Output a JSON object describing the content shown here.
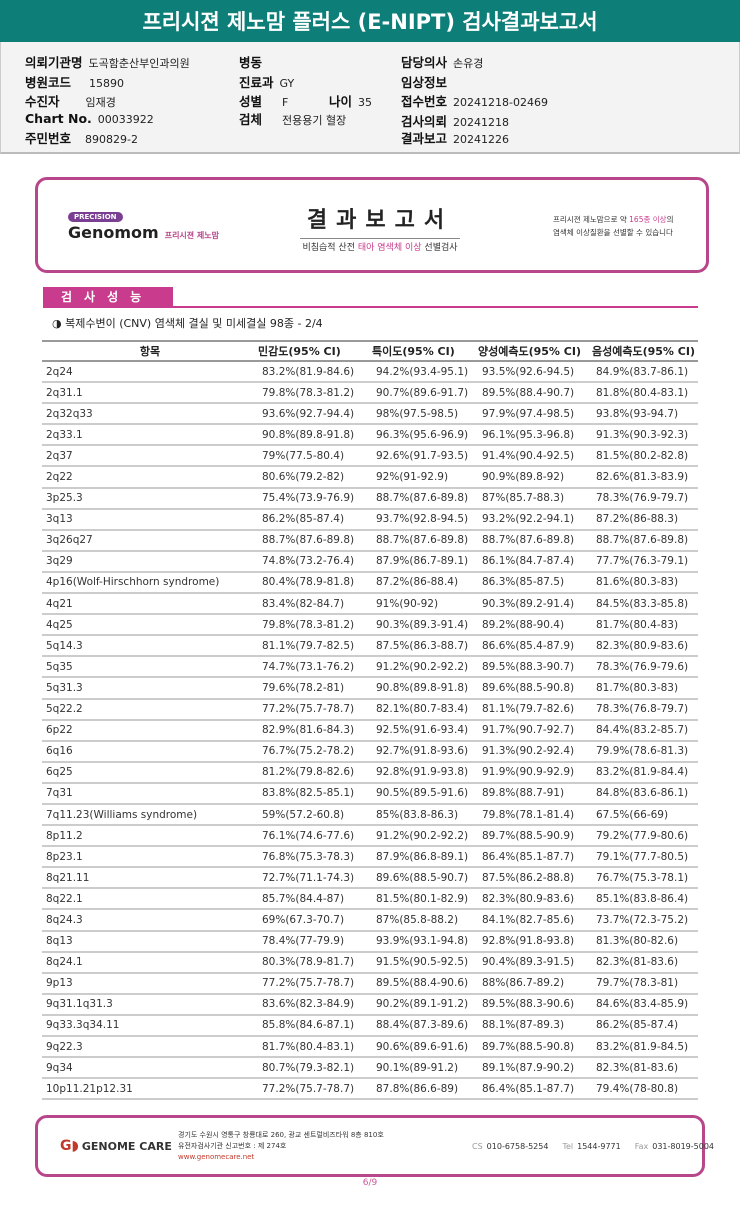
{
  "title": "프리시젼 제노맘 플러스 (E-NIPT) 검사결과보고서",
  "info": {
    "hospital_label": "의뢰기관명",
    "hospital": "도곡함춘산부인과의원",
    "code_label": "병원코드",
    "code": "15890",
    "patient_label": "수진자",
    "patient": "임재경",
    "chart_label": "Chart No.",
    "chart": "00033922",
    "rrn_label": "주민번호",
    "rrn": "890829-2",
    "ward_label": "병동",
    "ward": "",
    "dept_label": "진료과",
    "dept": "GY",
    "sex_label": "성별",
    "sex": "F",
    "age_label": "나이",
    "age": "35",
    "specimen_label": "검체",
    "specimen": "전용용기 혈장",
    "doctor_label": "담당의사",
    "doctor": "손유경",
    "clinical_label": "임상정보",
    "clinical": "",
    "accession_label": "접수번호",
    "accession": "20241218-02469",
    "request_label": "검사의뢰",
    "request": "20241218",
    "report_label": "결과보고",
    "report": "20241226"
  },
  "report_header": {
    "precision": "PRECISION",
    "brand": "Genomom",
    "brand_kr": "프리시젼 제노맘",
    "title": "결과보고서",
    "subtitle_a": "비침습적 산전 ",
    "subtitle_em": "태아 염색체 이상",
    "subtitle_b": " 선별검사",
    "right_a": "프리시젼 제노맘으로 약 ",
    "right_em": "165종 이상",
    "right_b": "의",
    "right_c": "염색체 이상질환을 선별할 수 있습니다"
  },
  "section": {
    "title": "검사성능",
    "subtitle": "◑ 복제수변이 (CNV) 염색체 결실 및 미세결실 98종 - 2/4"
  },
  "table": {
    "headers": [
      "항목",
      "민감도(95% CI)",
      "특이도(95% CI)",
      "양성예측도(95% CI)",
      "음성예측도(95% CI)"
    ],
    "rows": [
      [
        "2q24",
        "83.2%(81.9-84.6)",
        "94.2%(93.4-95.1)",
        "93.5%(92.6-94.5)",
        "84.9%(83.7-86.1)"
      ],
      [
        "2q31.1",
        "79.8%(78.3-81.2)",
        "90.7%(89.6-91.7)",
        "89.5%(88.4-90.7)",
        "81.8%(80.4-83.1)"
      ],
      [
        "2q32q33",
        "93.6%(92.7-94.4)",
        "98%(97.5-98.5)",
        "97.9%(97.4-98.5)",
        "93.8%(93-94.7)"
      ],
      [
        "2q33.1",
        "90.8%(89.8-91.8)",
        "96.3%(95.6-96.9)",
        "96.1%(95.3-96.8)",
        "91.3%(90.3-92.3)"
      ],
      [
        "2q37",
        "79%(77.5-80.4)",
        "92.6%(91.7-93.5)",
        "91.4%(90.4-92.5)",
        "81.5%(80.2-82.8)"
      ],
      [
        "2q22",
        "80.6%(79.2-82)",
        "92%(91-92.9)",
        "90.9%(89.8-92)",
        "82.6%(81.3-83.9)"
      ],
      [
        "3p25.3",
        "75.4%(73.9-76.9)",
        "88.7%(87.6-89.8)",
        "87%(85.7-88.3)",
        "78.3%(76.9-79.7)"
      ],
      [
        "3q13",
        "86.2%(85-87.4)",
        "93.7%(92.8-94.5)",
        "93.2%(92.2-94.1)",
        "87.2%(86-88.3)"
      ],
      [
        "3q26q27",
        "88.7%(87.6-89.8)",
        "88.7%(87.6-89.8)",
        "88.7%(87.6-89.8)",
        "88.7%(87.6-89.8)"
      ],
      [
        "3q29",
        "74.8%(73.2-76.4)",
        "87.9%(86.7-89.1)",
        "86.1%(84.7-87.4)",
        "77.7%(76.3-79.1)"
      ],
      [
        "4p16(Wolf-Hirschhorn syndrome)",
        "80.4%(78.9-81.8)",
        "87.2%(86-88.4)",
        "86.3%(85-87.5)",
        "81.6%(80.3-83)"
      ],
      [
        "4q21",
        "83.4%(82-84.7)",
        "91%(90-92)",
        "90.3%(89.2-91.4)",
        "84.5%(83.3-85.8)"
      ],
      [
        "4q25",
        "79.8%(78.3-81.2)",
        "90.3%(89.3-91.4)",
        "89.2%(88-90.4)",
        "81.7%(80.4-83)"
      ],
      [
        "5q14.3",
        "81.1%(79.7-82.5)",
        "87.5%(86.3-88.7)",
        "86.6%(85.4-87.9)",
        "82.3%(80.9-83.6)"
      ],
      [
        "5q35",
        "74.7%(73.1-76.2)",
        "91.2%(90.2-92.2)",
        "89.5%(88.3-90.7)",
        "78.3%(76.9-79.6)"
      ],
      [
        "5q31.3",
        "79.6%(78.2-81)",
        "90.8%(89.8-91.8)",
        "89.6%(88.5-90.8)",
        "81.7%(80.3-83)"
      ],
      [
        "5q22.2",
        "77.2%(75.7-78.7)",
        "82.1%(80.7-83.4)",
        "81.1%(79.7-82.6)",
        "78.3%(76.8-79.7)"
      ],
      [
        "6p22",
        "82.9%(81.6-84.3)",
        "92.5%(91.6-93.4)",
        "91.7%(90.7-92.7)",
        "84.4%(83.2-85.7)"
      ],
      [
        "6q16",
        "76.7%(75.2-78.2)",
        "92.7%(91.8-93.6)",
        "91.3%(90.2-92.4)",
        "79.9%(78.6-81.3)"
      ],
      [
        "6q25",
        "81.2%(79.8-82.6)",
        "92.8%(91.9-93.8)",
        "91.9%(90.9-92.9)",
        "83.2%(81.9-84.4)"
      ],
      [
        "7q31",
        "83.8%(82.5-85.1)",
        "90.5%(89.5-91.6)",
        "89.8%(88.7-91)",
        "84.8%(83.6-86.1)"
      ],
      [
        "7q11.23(Williams syndrome)",
        "59%(57.2-60.8)",
        "85%(83.8-86.3)",
        "79.8%(78.1-81.4)",
        "67.5%(66-69)"
      ],
      [
        "8p11.2",
        "76.1%(74.6-77.6)",
        "91.2%(90.2-92.2)",
        "89.7%(88.5-90.9)",
        "79.2%(77.9-80.6)"
      ],
      [
        "8p23.1",
        "76.8%(75.3-78.3)",
        "87.9%(86.8-89.1)",
        "86.4%(85.1-87.7)",
        "79.1%(77.7-80.5)"
      ],
      [
        "8q21.11",
        "72.7%(71.1-74.3)",
        "89.6%(88.5-90.7)",
        "87.5%(86.2-88.8)",
        "76.7%(75.3-78.1)"
      ],
      [
        "8q22.1",
        "85.7%(84.4-87)",
        "81.5%(80.1-82.9)",
        "82.3%(80.9-83.6)",
        "85.1%(83.8-86.4)"
      ],
      [
        "8q24.3",
        "69%(67.3-70.7)",
        "87%(85.8-88.2)",
        "84.1%(82.7-85.6)",
        "73.7%(72.3-75.2)"
      ],
      [
        "8q13",
        "78.4%(77-79.9)",
        "93.9%(93.1-94.8)",
        "92.8%(91.8-93.8)",
        "81.3%(80-82.6)"
      ],
      [
        "8q24.1",
        "80.3%(78.9-81.7)",
        "91.5%(90.5-92.5)",
        "90.4%(89.3-91.5)",
        "82.3%(81-83.6)"
      ],
      [
        "9p13",
        "77.2%(75.7-78.7)",
        "89.5%(88.4-90.6)",
        "88%(86.7-89.2)",
        "79.7%(78.3-81)"
      ],
      [
        "9q31.1q31.3",
        "83.6%(82.3-84.9)",
        "90.2%(89.1-91.2)",
        "89.5%(88.3-90.6)",
        "84.6%(83.4-85.9)"
      ],
      [
        "9q33.3q34.11",
        "85.8%(84.6-87.1)",
        "88.4%(87.3-89.6)",
        "88.1%(87-89.3)",
        "86.2%(85-87.4)"
      ],
      [
        "9q22.3",
        "81.7%(80.4-83.1)",
        "90.6%(89.6-91.6)",
        "89.7%(88.5-90.8)",
        "83.2%(81.9-84.5)"
      ],
      [
        "9q34",
        "80.7%(79.3-82.1)",
        "90.1%(89-91.2)",
        "89.1%(87.9-90.2)",
        "82.3%(81-83.6)"
      ],
      [
        "10p11.21p12.31",
        "77.2%(75.7-78.7)",
        "87.8%(86.6-89)",
        "86.4%(85.1-87.7)",
        "79.4%(78-80.8)"
      ]
    ]
  },
  "footer": {
    "logo": "GENOME CARE",
    "address": "경기도 수원시 영통구 창룡대로 260, 광교 센트럴비즈타워 8층 810호",
    "license": "유전자검사기관 신고번호 : 제 274호",
    "website": "www.genomecare.net",
    "cs_label": "CS",
    "cs": "010-6758-5254",
    "tel_label": "Tel",
    "tel": "1544-9771",
    "fax_label": "Fax",
    "fax": "031-8019-5004"
  },
  "page": "6/9",
  "colors": {
    "titlebar": "#0d7f78",
    "accent": "#c93b8c",
    "border": "#b8468a"
  }
}
